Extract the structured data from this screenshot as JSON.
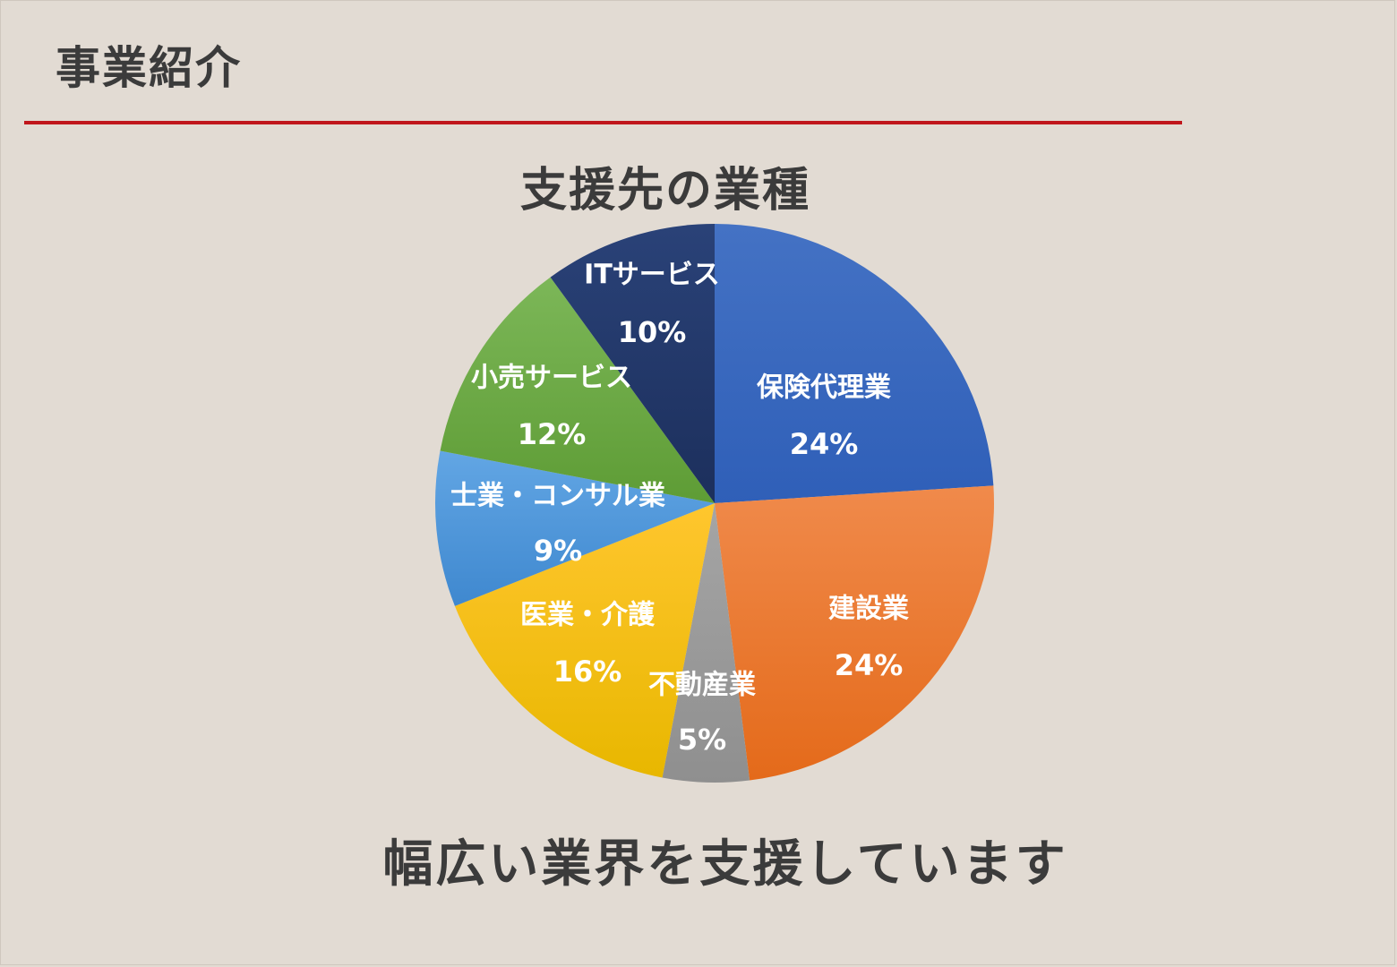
{
  "header": {
    "title": "事業紹介",
    "rule_color": "#c0161b"
  },
  "footer": {
    "tagline": "幅広い業界を支援しています"
  },
  "chart_data": {
    "type": "pie",
    "title": "支援先の業種",
    "start_angle_deg": 0,
    "direction": "clockwise",
    "slices": [
      {
        "label": "保険代理業",
        "value": 24,
        "display": "24%",
        "color": "#4472c4",
        "color_dark": "#2f5fb8"
      },
      {
        "label": "建設業",
        "value": 24,
        "display": "24%",
        "color": "#f08a4b",
        "color_dark": "#e46a1a"
      },
      {
        "label": "不動産業",
        "value": 5,
        "display": "5%",
        "color": "#a5a5a5",
        "color_dark": "#8f8f8f"
      },
      {
        "label": "医業・介護",
        "value": 16,
        "display": "16%",
        "color": "#ffc62e",
        "color_dark": "#e8b700"
      },
      {
        "label": "士業・コンサル業",
        "value": 9,
        "display": "9%",
        "color": "#62a6e4",
        "color_dark": "#3f88cf"
      },
      {
        "label": "小売サービス",
        "value": 12,
        "display": "12%",
        "color": "#7cb758",
        "color_dark": "#5e9c35"
      },
      {
        "label": "ITサービス",
        "value": 10,
        "display": "10%",
        "color": "#2a4278",
        "color_dark": "#1c2f5c"
      }
    ]
  }
}
